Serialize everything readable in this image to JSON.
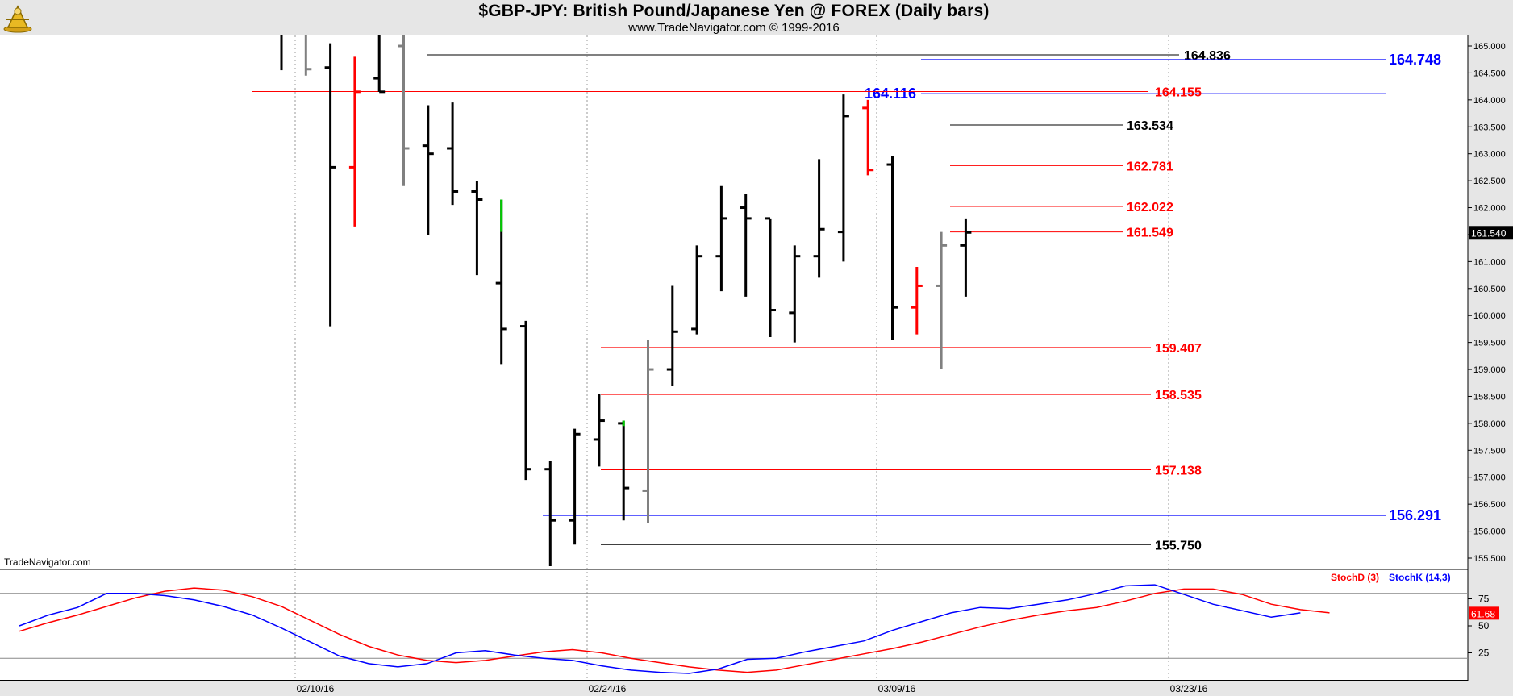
{
  "header": {
    "title": "$GBP-JPY:  British Pound/Japanese Yen @ FOREX  (Daily bars)",
    "subtitle": "www.TradeNavigator.com © 1999-2016"
  },
  "watermark": "TradeNavigator.com",
  "colors": {
    "up": "#000000",
    "down_red": "#ff0000",
    "gray": "#808080",
    "green": "#00cc00",
    "level_red": "#ff0000",
    "level_blue": "#0000ff",
    "level_black": "#000000",
    "stoch_d": "#ff0000",
    "stoch_k": "#0000ff"
  },
  "chart_data": [
    {
      "type": "ohlc",
      "title": "$GBP-JPY:  British Pound/Japanese Yen @ FOREX  (Daily bars)",
      "ylim": [
        155.25,
        165.2
      ],
      "y_ticks": [
        "155.500",
        "156.000",
        "156.500",
        "157.000",
        "157.500",
        "158.000",
        "158.500",
        "159.000",
        "159.500",
        "160.000",
        "160.500",
        "161.000",
        "161.500",
        "162.000",
        "162.500",
        "163.000",
        "163.500",
        "164.000",
        "164.500",
        "165.000"
      ],
      "x_tick_labels": [
        "02/10/16",
        "02/24/16",
        "03/09/16",
        "03/23/16"
      ],
      "last_price_label": "161.540",
      "bars": [
        {
          "date": "02/04",
          "o": null,
          "h": 165.6,
          "l": 164.55,
          "c": null,
          "color": "black"
        },
        {
          "date": "02/05",
          "o": null,
          "h": 165.6,
          "l": 164.45,
          "c": 164.57,
          "color": "gray"
        },
        {
          "date": "02/08",
          "o": 164.6,
          "h": 165.05,
          "l": 159.8,
          "c": 162.75,
          "color": "black"
        },
        {
          "date": "02/09",
          "o": 162.75,
          "h": 164.8,
          "l": 161.65,
          "c": 164.15,
          "color": "red"
        },
        {
          "date": "02/10",
          "o": 164.4,
          "h": 165.6,
          "l": 164.15,
          "c": 164.15,
          "color": "black"
        },
        {
          "date": "02/11",
          "o": 165.0,
          "h": 165.6,
          "l": 162.4,
          "c": 163.1,
          "color": "gray"
        },
        {
          "date": "02/12",
          "o": 163.15,
          "h": 163.9,
          "l": 161.5,
          "c": 163.0,
          "color": "black"
        },
        {
          "date": "02/15",
          "o": 163.1,
          "h": 163.95,
          "l": 162.05,
          "c": 162.3,
          "color": "black"
        },
        {
          "date": "02/16",
          "o": 162.3,
          "h": 162.5,
          "l": 160.75,
          "c": 162.15,
          "color": "black"
        },
        {
          "date": "02/17",
          "o": 160.6,
          "h": 162.15,
          "l": 159.1,
          "c": 159.75,
          "color": "black"
        },
        {
          "date": "02/18",
          "o": 159.8,
          "h": 159.9,
          "l": 156.95,
          "c": 157.15,
          "color": "black"
        },
        {
          "date": "02/19",
          "o": 157.15,
          "h": 157.3,
          "l": 155.35,
          "c": 156.2,
          "color": "black"
        },
        {
          "date": "02/22",
          "o": 156.2,
          "h": 157.9,
          "l": 155.75,
          "c": 157.8,
          "color": "black"
        },
        {
          "date": "02/23",
          "o": 157.7,
          "h": 158.55,
          "l": 157.2,
          "c": 158.05,
          "color": "black"
        },
        {
          "date": "02/24",
          "o": 158.0,
          "h": 158.05,
          "l": 156.2,
          "c": 156.8,
          "color": "black"
        },
        {
          "date": "02/25",
          "o": 156.75,
          "h": 159.55,
          "l": 156.15,
          "c": 159.0,
          "color": "gray"
        },
        {
          "date": "02/26",
          "o": 159.0,
          "h": 160.55,
          "l": 158.7,
          "c": 159.7,
          "color": "black"
        },
        {
          "date": "02/29",
          "o": 159.75,
          "h": 161.3,
          "l": 159.65,
          "c": 161.1,
          "color": "black"
        },
        {
          "date": "03/01",
          "o": 161.1,
          "h": 162.4,
          "l": 160.45,
          "c": 161.8,
          "color": "black"
        },
        {
          "date": "03/02",
          "o": 162.0,
          "h": 162.25,
          "l": 160.35,
          "c": 161.8,
          "color": "black"
        },
        {
          "date": "03/03",
          "o": 161.8,
          "h": 161.8,
          "l": 159.6,
          "c": 160.1,
          "color": "black"
        },
        {
          "date": "03/04",
          "o": 160.05,
          "h": 161.3,
          "l": 159.5,
          "c": 161.1,
          "color": "black"
        },
        {
          "date": "03/07",
          "o": 161.1,
          "h": 162.9,
          "l": 160.7,
          "c": 161.6,
          "color": "black"
        },
        {
          "date": "03/08",
          "o": 161.55,
          "h": 164.1,
          "l": 161.0,
          "c": 163.7,
          "color": "black"
        },
        {
          "date": "03/09",
          "o": 163.85,
          "h": 164.0,
          "l": 162.6,
          "c": 162.7,
          "color": "red"
        },
        {
          "date": "03/10",
          "o": 162.8,
          "h": 162.95,
          "l": 159.55,
          "c": 160.15,
          "color": "black"
        },
        {
          "date": "03/11",
          "o": 160.15,
          "h": 160.9,
          "l": 159.65,
          "c": 160.55,
          "color": "red"
        },
        {
          "date": "03/14",
          "o": 160.55,
          "h": 161.55,
          "l": 159.0,
          "c": 161.3,
          "color": "gray"
        },
        {
          "date": "03/15",
          "o": 161.3,
          "h": 161.8,
          "l": 160.35,
          "c": 161.54,
          "color": "black"
        }
      ],
      "levels": [
        {
          "value": 164.836,
          "label": "164.836",
          "color": "black"
        },
        {
          "value": 164.748,
          "label": "164.748",
          "color": "blue"
        },
        {
          "value": 164.116,
          "label": "164.116",
          "color": "blue"
        },
        {
          "value": 164.155,
          "label": "164.155",
          "color": "red"
        },
        {
          "value": 163.534,
          "label": "163.534",
          "color": "black"
        },
        {
          "value": 162.781,
          "label": "162.781",
          "color": "red"
        },
        {
          "value": 162.022,
          "label": "162.022",
          "color": "red"
        },
        {
          "value": 161.549,
          "label": "161.549",
          "color": "red"
        },
        {
          "value": 159.407,
          "label": "159.407",
          "color": "red"
        },
        {
          "value": 158.535,
          "label": "158.535",
          "color": "red"
        },
        {
          "value": 157.138,
          "label": "157.138",
          "color": "red"
        },
        {
          "value": 156.291,
          "label": "156.291",
          "color": "blue"
        },
        {
          "value": 155.75,
          "label": "155.750",
          "color": "black"
        }
      ]
    },
    {
      "type": "line",
      "ylim": [
        0,
        100
      ],
      "y_ticks": [
        "25",
        "50",
        "75"
      ],
      "reference_lines": [
        20,
        80
      ],
      "last_value_label": "61.68",
      "legend": [
        "StochD (3)",
        "StochK (14,3)"
      ],
      "series": [
        {
          "name": "StochD (3)",
          "color": "red",
          "values": [
            45,
            53,
            60,
            68,
            76,
            82,
            85,
            83,
            77,
            68,
            55,
            42,
            31,
            23,
            18,
            16,
            18,
            22,
            26,
            28,
            25,
            20,
            16,
            12,
            9,
            7,
            9,
            14,
            19,
            24,
            29,
            35,
            42,
            49,
            55,
            60,
            64,
            67,
            73,
            80,
            84,
            84,
            79,
            70,
            65,
            62
          ]
        },
        {
          "name": "StochK (14,3)",
          "color": "blue",
          "values": [
            50,
            60,
            67,
            80,
            80,
            78,
            74,
            68,
            60,
            48,
            35,
            22,
            15,
            12,
            15,
            25,
            27,
            23,
            20,
            18,
            13,
            9,
            7,
            6,
            10,
            19,
            20,
            26,
            31,
            36,
            46,
            54,
            62,
            67,
            66,
            70,
            74,
            80,
            87,
            88,
            79,
            70,
            64,
            58,
            62
          ]
        }
      ]
    }
  ]
}
